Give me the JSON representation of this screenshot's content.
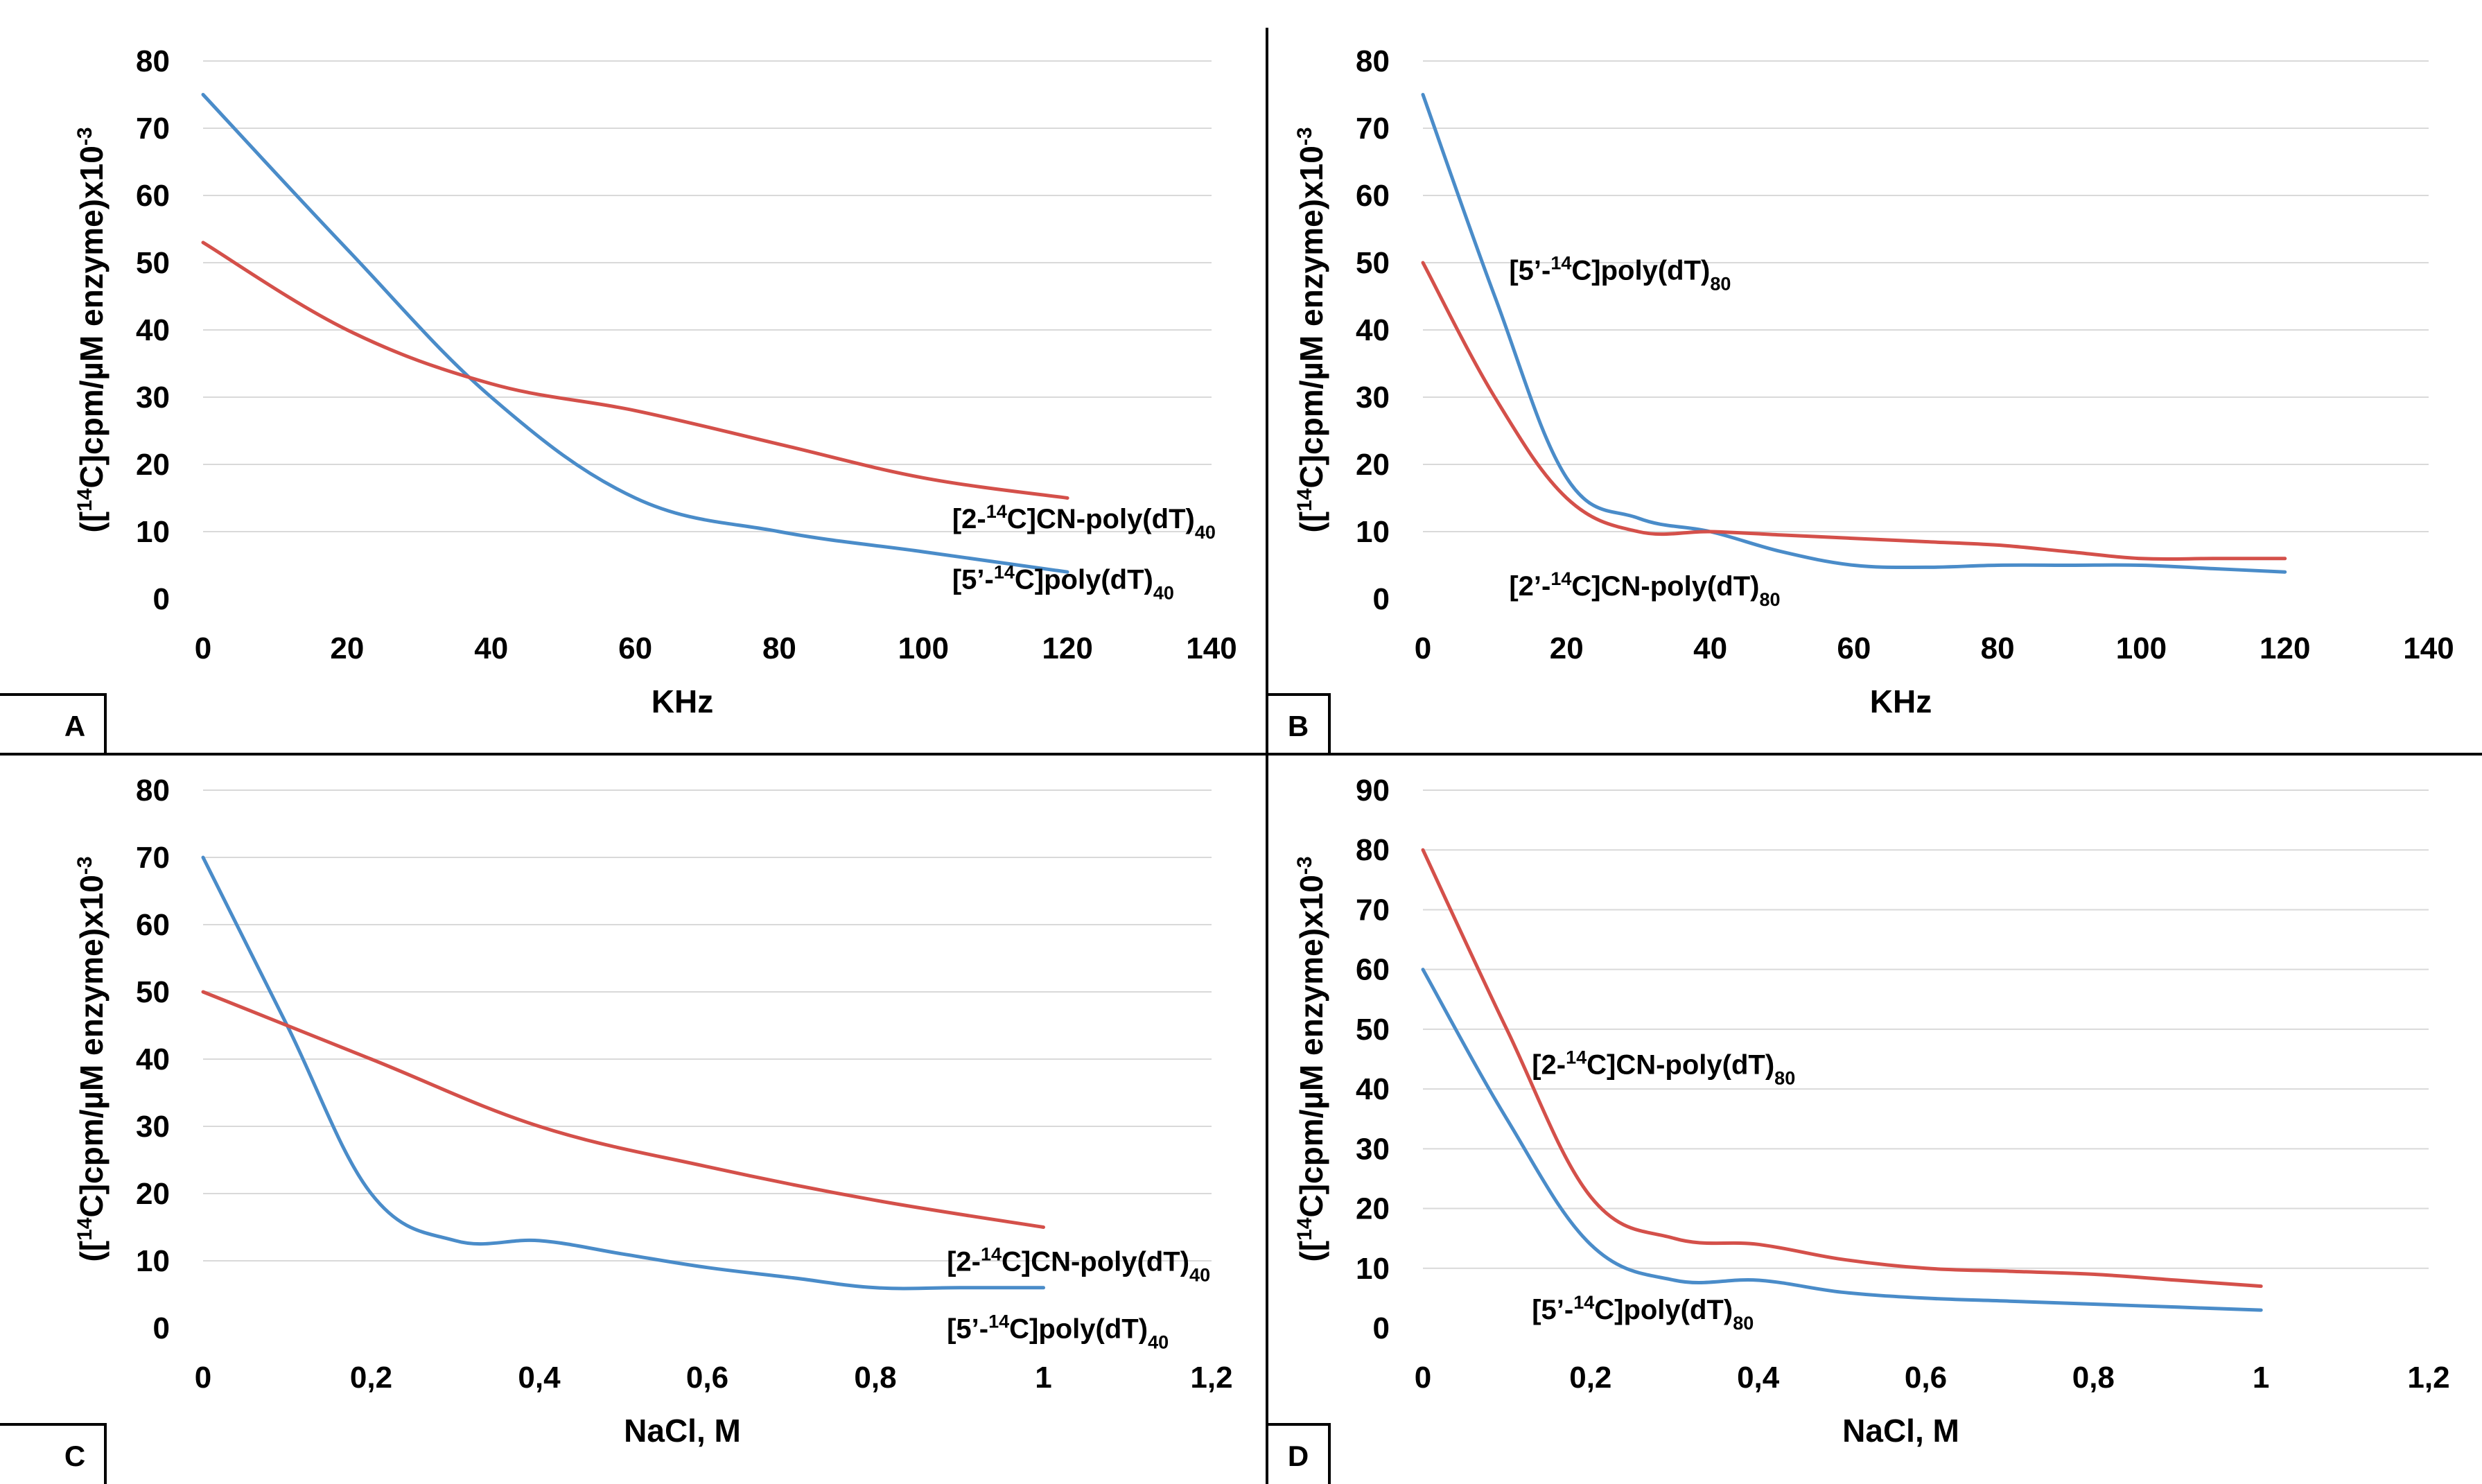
{
  "colors": {
    "blue": "#4a8cc9",
    "red": "#d4504a",
    "grid": "#d9d9d9",
    "frame": "#000000"
  },
  "chart_data": [
    {
      "panel": "A",
      "type": "line",
      "xlabel": "KHz",
      "ylabel_parts": [
        "([",
        "14",
        "C]cpm/µM enzyme)x10",
        "-3"
      ],
      "xlim": [
        0,
        140
      ],
      "ylim": [
        0,
        80
      ],
      "xticks": [
        0,
        20,
        40,
        60,
        80,
        100,
        120,
        140
      ],
      "xtick_labels": [
        "0",
        "20",
        "40",
        "60",
        "80",
        "100",
        "120",
        "140"
      ],
      "yticks": [
        0,
        10,
        20,
        30,
        40,
        50,
        60,
        70,
        80
      ],
      "ytick_labels": [
        "0",
        "10",
        "20",
        "30",
        "40",
        "50",
        "60",
        "70",
        "80"
      ],
      "grid": true,
      "series": [
        {
          "name": "[5’-14C]poly(dT)40",
          "label_parts": [
            "[5’-",
            "14",
            "C]poly(dT)",
            "40"
          ],
          "label_anchor": [
            104,
            1.5
          ],
          "color": "blue",
          "x": [
            0,
            20,
            40,
            60,
            80,
            100,
            120
          ],
          "y": [
            75,
            52,
            30,
            15,
            10,
            7,
            4
          ]
        },
        {
          "name": "[2-14C]CN-poly(dT)40",
          "label_parts": [
            "[2-",
            "14",
            "C]CN-poly(dT)",
            "40"
          ],
          "label_anchor": [
            104,
            10.5
          ],
          "color": "red",
          "x": [
            0,
            20,
            40,
            60,
            80,
            100,
            120
          ],
          "y": [
            53,
            40,
            32,
            28,
            23,
            18,
            15
          ]
        }
      ]
    },
    {
      "panel": "B",
      "type": "line",
      "xlabel": "KHz",
      "ylabel_parts": [
        "([",
        "14",
        "C]cpm/µM enzyme)x10",
        "-3"
      ],
      "xlim": [
        0,
        140
      ],
      "ylim": [
        0,
        80
      ],
      "xticks": [
        0,
        20,
        40,
        60,
        80,
        100,
        120,
        140
      ],
      "xtick_labels": [
        "0",
        "20",
        "40",
        "60",
        "80",
        "100",
        "120",
        "140"
      ],
      "yticks": [
        0,
        10,
        20,
        30,
        40,
        50,
        60,
        70,
        80
      ],
      "ytick_labels": [
        "0",
        "10",
        "20",
        "30",
        "40",
        "50",
        "60",
        "70",
        "80"
      ],
      "grid": true,
      "series": [
        {
          "name": "[5’-14C]poly(dT)80",
          "label_parts": [
            "[5’-",
            "14",
            "C]poly(dT)",
            "80"
          ],
          "label_anchor": [
            12,
            47.5
          ],
          "color": "blue",
          "x": [
            0,
            10,
            20,
            30,
            40,
            50,
            60,
            70,
            80,
            90,
            100,
            110,
            120
          ],
          "y": [
            75,
            45,
            18,
            12,
            10,
            7,
            5,
            4.7,
            5,
            5,
            5,
            4.5,
            4
          ]
        },
        {
          "name": "[2’-14C]CN-poly(dT)80",
          "label_parts": [
            "[2’-",
            "14",
            "C]CN-poly(dT)",
            "80"
          ],
          "label_anchor": [
            12,
            0.5
          ],
          "color": "red",
          "x": [
            0,
            10,
            20,
            30,
            40,
            50,
            60,
            70,
            80,
            90,
            100,
            110,
            120
          ],
          "y": [
            50,
            30,
            15,
            10,
            10,
            9.5,
            9,
            8.5,
            8,
            7,
            6,
            6,
            6
          ]
        }
      ]
    },
    {
      "panel": "C",
      "type": "line",
      "xlabel": "NaCl, M",
      "ylabel_parts": [
        "([",
        "14",
        "C]cpm/µM enzyme)x10",
        "-3"
      ],
      "xlim": [
        0,
        1.2
      ],
      "ylim": [
        0,
        80
      ],
      "xticks": [
        0,
        0.2,
        0.4,
        0.6,
        0.8,
        1.0,
        1.2
      ],
      "xtick_labels": [
        "0",
        "0,2",
        "0,4",
        "0,6",
        "0,8",
        "1",
        "1,2"
      ],
      "yticks": [
        0,
        10,
        20,
        30,
        40,
        50,
        60,
        70,
        80
      ],
      "ytick_labels": [
        "0",
        "10",
        "20",
        "30",
        "40",
        "50",
        "60",
        "70",
        "80"
      ],
      "grid": true,
      "series": [
        {
          "name": "[5’-14C]poly(dT)40",
          "label_parts": [
            "[5’-",
            "14",
            "C]poly(dT)",
            "40"
          ],
          "label_anchor": [
            0.885,
            -1.5
          ],
          "color": "blue",
          "x": [
            0,
            0.1,
            0.2,
            0.3,
            0.4,
            0.5,
            0.6,
            0.7,
            0.8,
            0.9,
            1.0
          ],
          "y": [
            70,
            45,
            20,
            13,
            13,
            11,
            9,
            7.5,
            6,
            6,
            6
          ]
        },
        {
          "name": "[2-14C]CN-poly(dT)40",
          "label_parts": [
            "[2-",
            "14",
            "C]CN-poly(dT)",
            "40"
          ],
          "label_anchor": [
            0.885,
            8.5
          ],
          "color": "red",
          "x": [
            0,
            0.2,
            0.4,
            0.6,
            0.8,
            1.0
          ],
          "y": [
            50,
            40,
            30,
            24,
            19,
            15
          ]
        }
      ]
    },
    {
      "panel": "D",
      "type": "line",
      "xlabel": "NaCl, M",
      "ylabel_parts": [
        "([",
        "14",
        "C]cpm/µM enzyme)x10",
        "-3"
      ],
      "xlim": [
        0,
        1.2
      ],
      "ylim": [
        0,
        90
      ],
      "xticks": [
        0,
        0.2,
        0.4,
        0.6,
        0.8,
        1.0,
        1.2
      ],
      "xtick_labels": [
        "0",
        "0,2",
        "0,4",
        "0,6",
        "0,8",
        "1",
        "1,2"
      ],
      "yticks": [
        0,
        10,
        20,
        30,
        40,
        50,
        60,
        70,
        80,
        90
      ],
      "ytick_labels": [
        "0",
        "10",
        "20",
        "30",
        "40",
        "50",
        "60",
        "70",
        "80",
        "90"
      ],
      "grid": true,
      "series": [
        {
          "name": "[5’-14C]poly(dT)80",
          "label_parts": [
            "[5’-",
            "14",
            "C]poly(dT)",
            "80"
          ],
          "label_anchor": [
            0.13,
            1.5
          ],
          "color": "blue",
          "x": [
            0,
            0.1,
            0.2,
            0.3,
            0.4,
            0.5,
            0.6,
            0.7,
            0.8,
            0.9,
            1.0
          ],
          "y": [
            60,
            35,
            14,
            8,
            8,
            6,
            5,
            4.5,
            4,
            3.5,
            3
          ]
        },
        {
          "name": "[2-14C]CN-poly(dT)80",
          "label_parts": [
            "[2-",
            "14",
            "C]CN-poly(dT)",
            "80"
          ],
          "label_anchor": [
            0.13,
            42.5
          ],
          "color": "red",
          "x": [
            0,
            0.1,
            0.2,
            0.3,
            0.4,
            0.5,
            0.6,
            0.7,
            0.8,
            0.9,
            1.0
          ],
          "y": [
            80,
            50,
            22,
            15,
            14,
            11.5,
            10,
            9.5,
            9,
            8,
            7
          ]
        }
      ]
    }
  ]
}
